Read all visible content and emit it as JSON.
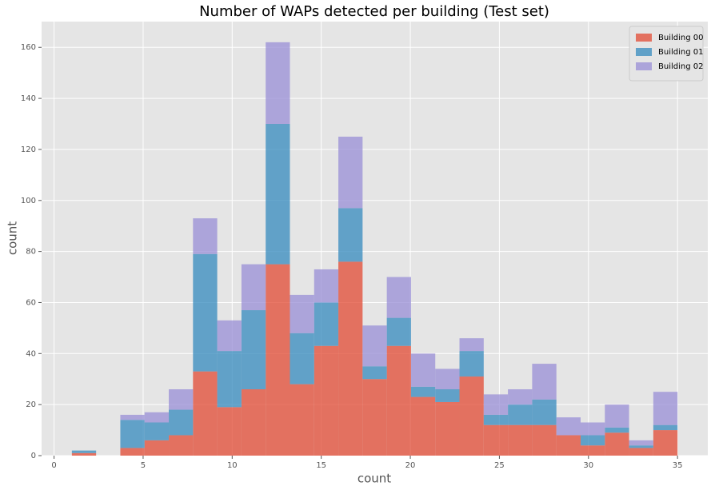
{
  "chart_data": {
    "type": "stacked_histogram",
    "title": "Number of WAPs detected per building (Test set)",
    "x_label": "count",
    "y_label": "count",
    "bins": [
      1,
      2.36,
      3.72,
      5.08,
      6.44,
      7.8,
      9.16,
      10.52,
      11.88,
      13.24,
      14.6,
      15.96,
      17.32,
      18.68,
      20.04,
      21.4,
      22.76,
      24.12,
      25.48,
      26.84,
      28.2,
      29.56,
      30.92,
      32.28,
      33.64,
      35
    ],
    "series": [
      {
        "name": "Building 00",
        "color": "#E24A33",
        "values": [
          1,
          0,
          3,
          6,
          8,
          33,
          19,
          26,
          75,
          28,
          43,
          76,
          30,
          43,
          23,
          21,
          31,
          12,
          12,
          12,
          8,
          4,
          9,
          3,
          10
        ]
      },
      {
        "name": "Building 01",
        "color": "#348ABD",
        "values": [
          1,
          0,
          11,
          7,
          10,
          46,
          22,
          31,
          55,
          20,
          17,
          21,
          5,
          11,
          4,
          5,
          10,
          4,
          8,
          10,
          0,
          4,
          2,
          1,
          2
        ]
      },
      {
        "name": "Building 02",
        "color": "#988ED5",
        "values": [
          0,
          0,
          2,
          4,
          8,
          14,
          12,
          18,
          32,
          15,
          13,
          28,
          16,
          16,
          13,
          8,
          5,
          8,
          6,
          14,
          7,
          5,
          9,
          2,
          13
        ]
      }
    ],
    "xlim": [
      -0.7,
      36.7
    ],
    "xticks": [
      0,
      5,
      10,
      15,
      20,
      25,
      30,
      35
    ],
    "ylim": [
      0,
      170.1
    ],
    "yticks": [
      0,
      20,
      40,
      60,
      80,
      100,
      120,
      140,
      160
    ],
    "grid": true,
    "legend": "upper right"
  }
}
